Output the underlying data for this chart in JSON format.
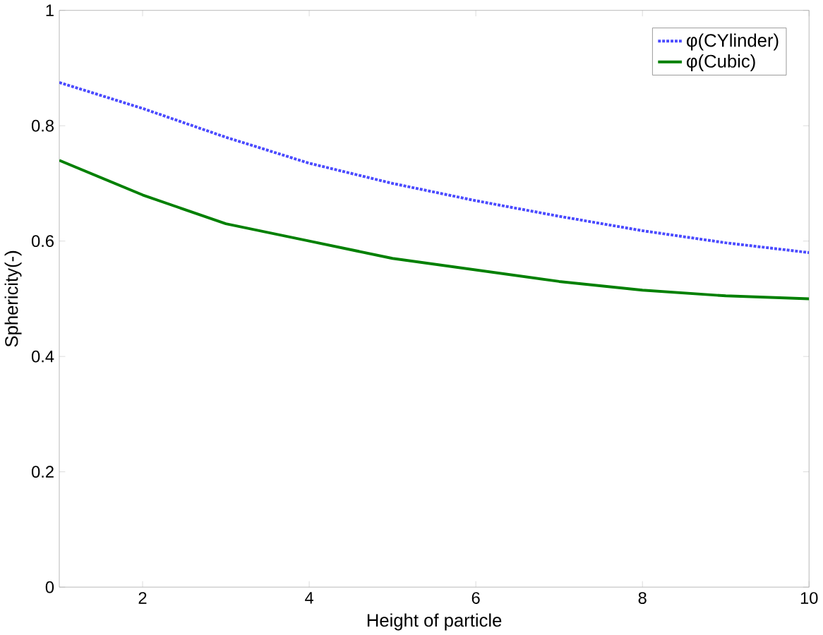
{
  "chart_data": {
    "type": "line",
    "xlabel": "Height of particle",
    "ylabel": "Sphericity(-)",
    "x": [
      1,
      2,
      3,
      4,
      5,
      6,
      7,
      8,
      9,
      10
    ],
    "xlim": [
      1,
      10
    ],
    "ylim": [
      0,
      1
    ],
    "xticks": [
      2,
      4,
      6,
      8,
      10
    ],
    "yticks": [
      0,
      0.2,
      0.4,
      0.6,
      0.8,
      1
    ],
    "grid": false,
    "legend": "top right",
    "series": [
      {
        "name": "φ(CYlinder)",
        "color": "#4a4aff",
        "line_style": "dotted",
        "values": [
          0.875,
          0.83,
          0.78,
          0.735,
          0.7,
          0.67,
          0.643,
          0.618,
          0.597,
          0.58
        ]
      },
      {
        "name": "φ(Cubic)",
        "color": "#008000",
        "line_style": "solid",
        "values": [
          0.74,
          0.68,
          0.63,
          0.6,
          0.57,
          0.55,
          0.53,
          0.515,
          0.505,
          0.5
        ]
      }
    ]
  }
}
